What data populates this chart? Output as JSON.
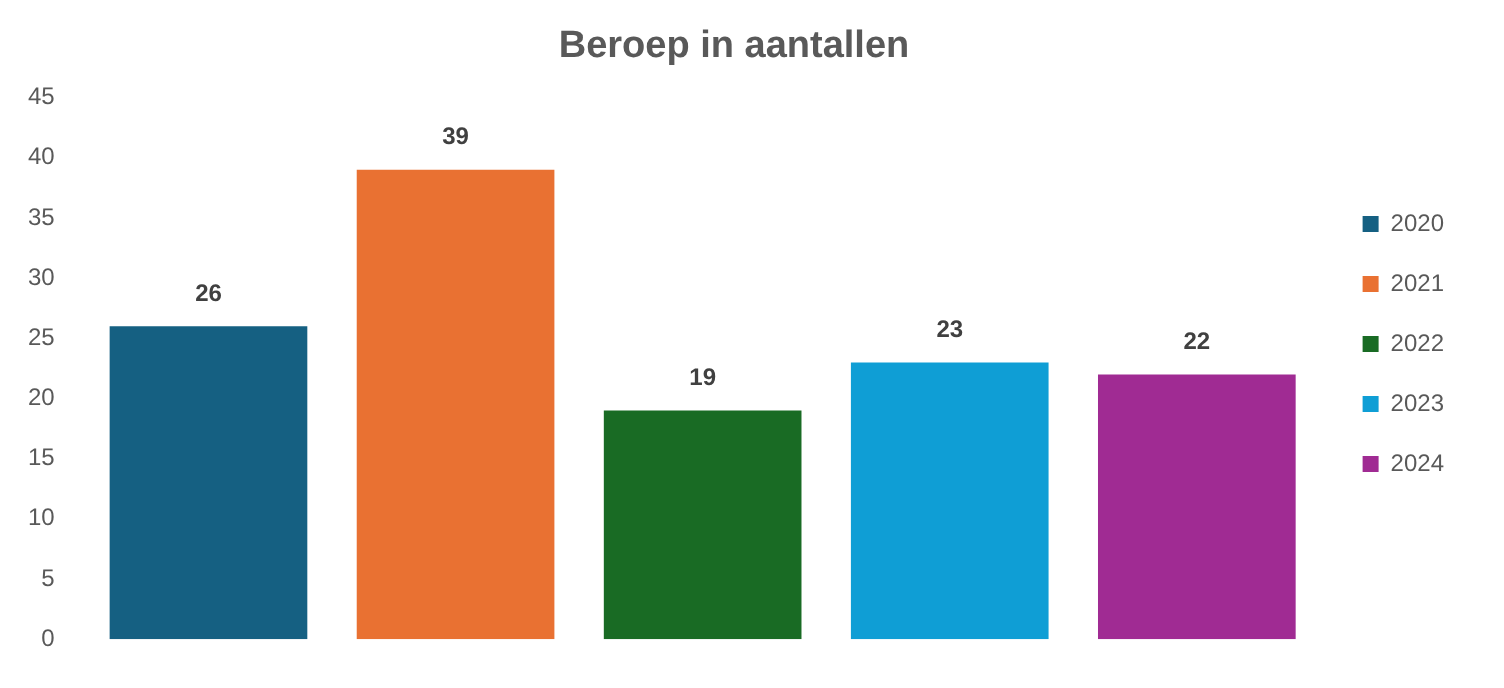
{
  "chart_data": {
    "type": "bar",
    "title": "Beroep in aantallen",
    "categories": [
      null
    ],
    "series": [
      {
        "name": "2020",
        "color": "#156082",
        "values": [
          26
        ]
      },
      {
        "name": "2021",
        "color": "#e97132",
        "values": [
          39
        ]
      },
      {
        "name": "2022",
        "color": "#196b24",
        "values": [
          19
        ]
      },
      {
        "name": "2023",
        "color": "#0f9ed5",
        "values": [
          23
        ]
      },
      {
        "name": "2024",
        "color": "#a02b93",
        "values": [
          22
        ]
      }
    ],
    "ylim": [
      0,
      45
    ],
    "yticks": [
      0,
      5,
      10,
      15,
      20,
      25,
      30,
      35,
      40,
      45
    ],
    "grid": false,
    "legend": "right",
    "data_labels": true
  }
}
